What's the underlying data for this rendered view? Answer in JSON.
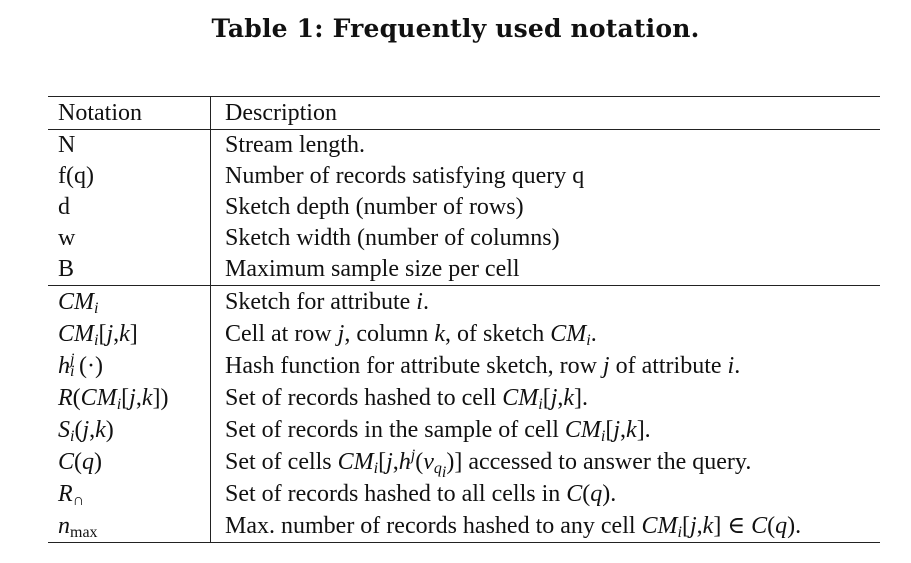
{
  "caption": "Table 1: Frequently used notation.",
  "header": {
    "notation": "Notation",
    "description": "Description"
  },
  "group1": [
    {
      "notation": "N",
      "description": "Stream length."
    },
    {
      "notation": "f(q)",
      "description": "Number of records satisfying query q"
    },
    {
      "notation": "d",
      "description": "Sketch depth (number of rows)"
    },
    {
      "notation": "w",
      "description": "Sketch width (number of columns)"
    },
    {
      "notation": "B",
      "description": "Maximum sample size per cell"
    }
  ],
  "group2": [
    {
      "notation": "CM_i",
      "description": "Sketch for attribute i."
    },
    {
      "notation": "CM_i[j,k]",
      "description": "Cell at row j, column k, of sketch CM_i."
    },
    {
      "notation": "h_i^j(·)",
      "description": "Hash function for attribute sketch, row j of attribute i."
    },
    {
      "notation": "R(CM_i[j,k])",
      "description": "Set of records hashed to cell CM_i[j,k]."
    },
    {
      "notation": "S_i(j,k)",
      "description": "Set of records in the sample of cell CM_i[j,k]."
    },
    {
      "notation": "C(q)",
      "description": "Set of cells CM_i[j,h^j(v_{q_i})] accessed to answer the query."
    },
    {
      "notation": "R_∩",
      "description": "Set of records hashed to all cells in C(q)."
    },
    {
      "notation": "n_max",
      "description": "Max. number of records hashed to any cell CM_i[j,k] ∈ C(q)."
    }
  ]
}
